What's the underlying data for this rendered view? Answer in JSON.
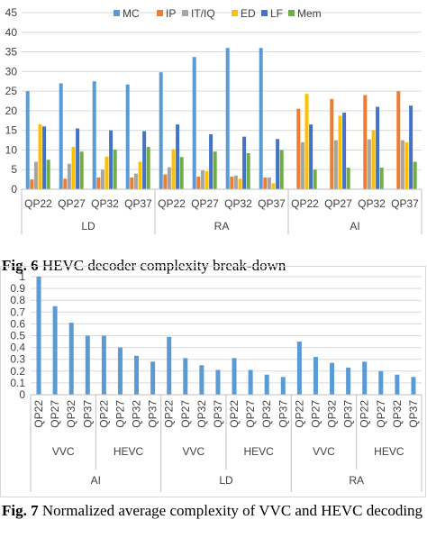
{
  "figure1": {
    "caption_label": "Fig. 6",
    "caption_text": "HEVC decoder complexity break-down",
    "chart_data": {
      "type": "bar",
      "title": "",
      "xlabel": "",
      "ylabel": "",
      "ylim": [
        0,
        45
      ],
      "yticks": [
        0,
        5,
        10,
        15,
        20,
        25,
        30,
        35,
        40,
        45
      ],
      "grid": true,
      "legend_position": "top",
      "categories": [
        "QP22",
        "QP27",
        "QP32",
        "QP37",
        "QP22",
        "QP27",
        "QP32",
        "QP37",
        "QP22",
        "QP27",
        "QP32",
        "QP37"
      ],
      "groups": [
        {
          "label": "LD",
          "count": 4
        },
        {
          "label": "RA",
          "count": 4
        },
        {
          "label": "AI",
          "count": 4
        }
      ],
      "series": [
        {
          "name": "MC",
          "color": "#5b9bd5",
          "values": [
            25,
            27,
            27.5,
            26.7,
            29.8,
            33.7,
            36,
            36,
            0,
            0,
            0,
            0
          ]
        },
        {
          "name": "IP",
          "color": "#ed7d31",
          "values": [
            2.5,
            2.7,
            3,
            3,
            3.8,
            3.2,
            3.2,
            3,
            20.5,
            23,
            24,
            25
          ]
        },
        {
          "name": "IT/IQ",
          "color": "#a5a5a5",
          "values": [
            7,
            6.5,
            5,
            4,
            5.6,
            4.8,
            3.5,
            3,
            12,
            12.5,
            12.7,
            12.5
          ]
        },
        {
          "name": "ED",
          "color": "#ffc000",
          "values": [
            16.5,
            10.8,
            8.3,
            7,
            10.2,
            4.6,
            2.7,
            1.5,
            24.3,
            18.7,
            15,
            12
          ]
        },
        {
          "name": "LF",
          "color": "#4472c4",
          "values": [
            16,
            15.5,
            15,
            14.8,
            16.5,
            14,
            13.4,
            12.8,
            16.5,
            19.5,
            21,
            21.3
          ]
        },
        {
          "name": "Mem",
          "color": "#70ad47",
          "values": [
            7.5,
            9.6,
            10.1,
            10.8,
            8.2,
            9.6,
            9.2,
            10,
            5,
            5.5,
            5.5,
            7
          ]
        }
      ]
    }
  },
  "figure2": {
    "caption_label": "Fig. 7",
    "caption_text": "Normalized average complexity of VVC and HEVC decoding",
    "chart_data": {
      "type": "bar",
      "title": "",
      "xlabel": "",
      "ylabel": "",
      "ylim": [
        0,
        1
      ],
      "yticks": [
        0,
        0.1,
        0.2,
        0.3,
        0.4,
        0.5,
        0.6,
        0.7,
        0.8,
        0.9,
        1
      ],
      "grid": true,
      "color": "#5b9bd5",
      "categories": [
        "QP22",
        "QP27",
        "QP32",
        "QP37",
        "QP22",
        "QP27",
        "QP32",
        "QP37",
        "QP22",
        "QP27",
        "QP32",
        "QP37",
        "QP22",
        "QP27",
        "QP32",
        "QP37",
        "QP22",
        "QP27",
        "QP32",
        "QP37",
        "QP22",
        "QP27",
        "QP32",
        "QP37"
      ],
      "codec_groups": [
        {
          "label": "VVC",
          "count": 4
        },
        {
          "label": "HEVC",
          "count": 4
        },
        {
          "label": "VVC",
          "count": 4
        },
        {
          "label": "HEVC",
          "count": 4
        },
        {
          "label": "VVC",
          "count": 4
        },
        {
          "label": "HEVC",
          "count": 4
        }
      ],
      "config_groups": [
        {
          "label": "AI",
          "count": 8
        },
        {
          "label": "LD",
          "count": 8
        },
        {
          "label": "RA",
          "count": 8
        }
      ],
      "values": [
        1.0,
        0.75,
        0.61,
        0.5,
        0.5,
        0.4,
        0.33,
        0.28,
        0.49,
        0.31,
        0.25,
        0.21,
        0.31,
        0.21,
        0.17,
        0.15,
        0.45,
        0.32,
        0.27,
        0.23,
        0.28,
        0.2,
        0.17,
        0.15
      ]
    }
  }
}
